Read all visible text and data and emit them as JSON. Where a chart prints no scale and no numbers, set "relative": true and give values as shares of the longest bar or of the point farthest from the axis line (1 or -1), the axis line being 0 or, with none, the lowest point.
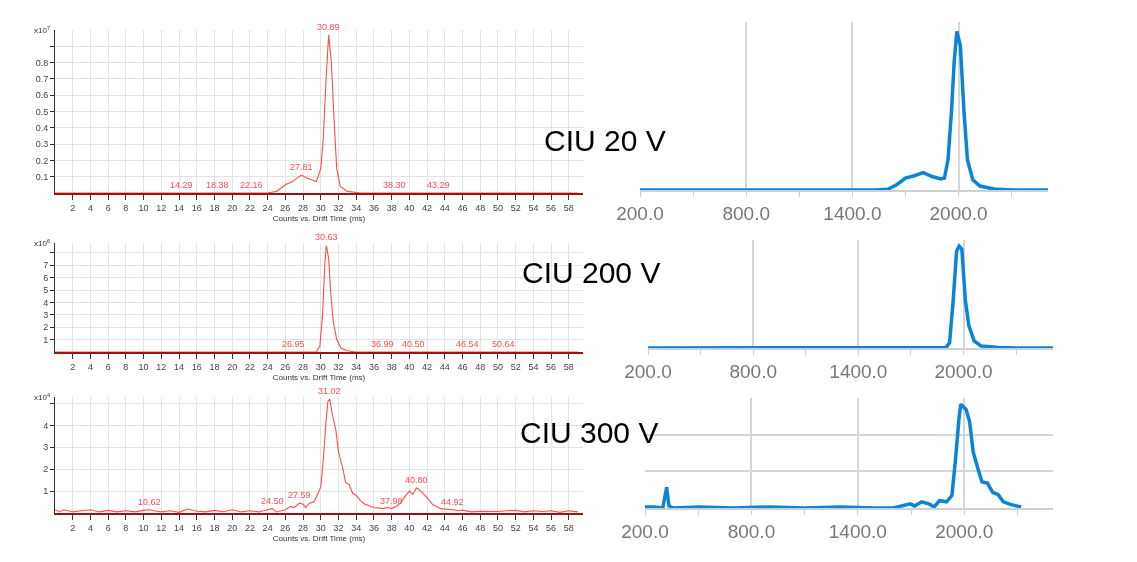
{
  "chart_data": [
    {
      "type": "line",
      "xlabel": "Counts vs. Drift Time (ms)",
      "ylabel": "x10$^{7}$",
      "xlim": [
        0,
        59.6
      ],
      "ylim": [
        0,
        1.0
      ],
      "xticks": [
        2,
        4,
        6,
        8,
        10,
        12,
        14,
        16,
        18,
        20,
        22,
        24,
        26,
        28,
        30,
        32,
        34,
        36,
        38,
        40,
        42,
        44,
        46,
        48,
        50,
        52,
        54,
        56,
        58
      ],
      "yticks": [
        0.1,
        0.2,
        0.3,
        0.4,
        0.5,
        0.6,
        0.7,
        0.8,
        {
          "value": 0.9,
          "label": null
        }
      ],
      "grid": true,
      "series": [
        {
          "color": "#ff4d4d",
          "x": [
            0,
            24,
            25,
            26,
            26.8,
            27.81,
            28.5,
            29.5,
            30.0,
            30.3,
            30.6,
            30.89,
            31.2,
            31.5,
            31.8,
            32.2,
            33,
            34.5,
            59
          ],
          "values": [
            0,
            0,
            0.01,
            0.05,
            0.07,
            0.11,
            0.09,
            0.07,
            0.15,
            0.35,
            0.7,
            0.97,
            0.8,
            0.45,
            0.15,
            0.04,
            0.01,
            0,
            0
          ]
        }
      ],
      "annotations": [
        {
          "text": "14.29",
          "x": 14.29,
          "y": 0
        },
        {
          "text": "18.38",
          "x": 18.38,
          "y": 0
        },
        {
          "text": "22.16",
          "x": 22.16,
          "y": 0
        },
        {
          "text": "27.81",
          "x": 27.81,
          "y": 0.11
        },
        {
          "text": "30.89",
          "x": 30.89,
          "y": 0.97
        },
        {
          "text": "38.30",
          "x": 38.3,
          "y": 0
        },
        {
          "text": "43.29",
          "x": 43.29,
          "y": 0
        }
      ]
    },
    {
      "type": "line",
      "xlabel": "Counts vs. Drift Time (ms)",
      "ylabel": "x10$^{6}$",
      "xlim": [
        0,
        59.6
      ],
      "ylim": [
        0,
        8.8
      ],
      "xticks": [
        2,
        4,
        6,
        8,
        10,
        12,
        14,
        16,
        18,
        20,
        22,
        24,
        26,
        28,
        30,
        32,
        34,
        36,
        38,
        40,
        42,
        44,
        46,
        48,
        50,
        52,
        54,
        56,
        58
      ],
      "yticks": [
        1,
        2,
        3,
        4,
        5,
        6,
        7,
        {
          "value": 8,
          "label": null
        }
      ],
      "grid": true,
      "series": [
        {
          "color": "#ff4d4d",
          "x": [
            0,
            28,
            29.5,
            29.9,
            30.2,
            30.45,
            30.63,
            30.9,
            31.1,
            31.4,
            31.8,
            32.3,
            33,
            34,
            35,
            59
          ],
          "values": [
            0,
            0,
            0,
            0.5,
            3,
            7,
            8.6,
            7.5,
            5,
            2.5,
            1,
            0.3,
            0.1,
            0,
            0,
            0
          ]
        }
      ],
      "annotations": [
        {
          "text": "26.95",
          "x": 26.95,
          "y": 0
        },
        {
          "text": "30.63",
          "x": 30.63,
          "y": 8.6
        },
        {
          "text": "36.99",
          "x": 36.99,
          "y": 0
        },
        {
          "text": "40.50",
          "x": 40.5,
          "y": 0
        },
        {
          "text": "46.54",
          "x": 46.54,
          "y": 0
        },
        {
          "text": "50.64",
          "x": 50.64,
          "y": 0
        }
      ]
    },
    {
      "type": "line",
      "xlabel": "Counts vs. Drift Time (ms)",
      "ylabel": "x10$^{4}$",
      "xlim": [
        0,
        59.6
      ],
      "ylim": [
        0,
        5.3
      ],
      "xticks": [
        2,
        4,
        6,
        8,
        10,
        12,
        14,
        16,
        18,
        20,
        22,
        24,
        26,
        28,
        30,
        32,
        34,
        36,
        38,
        40,
        42,
        44,
        46,
        48,
        50,
        52,
        54,
        56,
        58
      ],
      "yticks": [
        1,
        2,
        3,
        4,
        {
          "value": 5,
          "label": null
        }
      ],
      "grid": true,
      "series": [
        {
          "color": "#ff4d4d",
          "x": [
            0,
            0.5,
            1,
            2,
            3,
            4,
            5,
            6,
            7,
            8,
            9,
            10,
            10.62,
            11.5,
            12,
            13,
            14,
            15,
            16,
            17,
            18,
            19,
            20,
            21,
            22,
            23,
            24,
            24.5,
            25,
            26,
            26.6,
            27,
            27.59,
            28,
            28.3,
            28.7,
            29.2,
            29.6,
            30,
            30.3,
            30.6,
            30.8,
            31.02,
            31.3,
            31.7,
            32,
            32.5,
            32.8,
            33.2,
            33.6,
            34,
            34.5,
            35,
            36,
            37,
            37.5,
            37.98,
            38.5,
            39,
            39.5,
            40,
            40.4,
            40.8,
            41.3,
            42,
            42.6,
            43.5,
            44.92,
            45.5,
            46,
            47,
            48,
            50,
            51,
            52,
            53,
            54,
            55,
            56,
            57,
            58,
            59
          ],
          "values": [
            0.15,
            0.05,
            0.15,
            0.05,
            0.1,
            0.15,
            0.05,
            0.12,
            0.05,
            0.1,
            0.05,
            0.12,
            0.15,
            0.08,
            0.05,
            0.1,
            0.03,
            0.18,
            0.08,
            0.05,
            0.12,
            0.06,
            0.15,
            0.05,
            0.1,
            0.05,
            0.15,
            0.2,
            0.05,
            0.15,
            0.3,
            0.25,
            0.45,
            0.4,
            0.25,
            0.45,
            0.5,
            0.8,
            1.2,
            2.5,
            4.2,
            5.1,
            5.2,
            4.5,
            3.8,
            2.8,
            2.0,
            1.4,
            1.3,
            0.9,
            0.8,
            0.55,
            0.4,
            0.25,
            0.2,
            0.25,
            0.2,
            0.3,
            0.45,
            0.75,
            1.0,
            0.85,
            1.15,
            1.0,
            0.7,
            0.4,
            0.2,
            0.15,
            0.1,
            0.13,
            0.05,
            0.08,
            0.07,
            0.1,
            0.12,
            0.05,
            0.1,
            0.07,
            0.1,
            0.03,
            0.1,
            0.05
          ]
        }
      ],
      "annotations": [
        {
          "text": "10.62",
          "x": 10.62,
          "y": 0.15
        },
        {
          "text": "24.50",
          "x": 24.5,
          "y": 0.2
        },
        {
          "text": "27.59",
          "x": 27.59,
          "y": 0.45
        },
        {
          "text": "31.02",
          "x": 31.02,
          "y": 5.2
        },
        {
          "text": "37.98",
          "x": 37.98,
          "y": 0.2
        },
        {
          "text": "40.80",
          "x": 40.8,
          "y": 1.15
        },
        {
          "text": "44.92",
          "x": 44.92,
          "y": 0.15
        }
      ]
    },
    {
      "type": "line",
      "title": "CIU 20 V",
      "relative": true,
      "xlim": [
        200,
        2505
      ],
      "xticks": [
        {
          "value": 200,
          "label": "200.0"
        },
        {
          "value": 500,
          "label": null
        },
        {
          "value": 800,
          "label": "800.0"
        },
        {
          "value": 1100,
          "label": null
        },
        {
          "value": 1400,
          "label": "1400.0"
        },
        {
          "value": 1700,
          "label": null
        },
        {
          "value": 2000,
          "label": "2000.0"
        },
        {
          "value": 2300,
          "label": null
        }
      ],
      "grid": "x",
      "tick_labels": "x",
      "series": [
        {
          "color": "#0a84d6",
          "x": [
            200,
            1530,
            1600,
            1650,
            1700,
            1750,
            1800,
            1850,
            1900,
            1920,
            1940,
            1960,
            1975,
            1990,
            2010,
            2030,
            2050,
            2080,
            2120,
            2200,
            2300,
            2505
          ],
          "values": [
            0,
            0,
            0.005,
            0.033,
            0.075,
            0.09,
            0.11,
            0.085,
            0.07,
            0.075,
            0.19,
            0.5,
            0.81,
            1.0,
            0.91,
            0.5,
            0.19,
            0.065,
            0.025,
            0.006,
            0,
            0
          ]
        }
      ]
    },
    {
      "type": "line",
      "title": "CIU 200 V",
      "relative": true,
      "xlim": [
        200,
        2510
      ],
      "xticks": [
        {
          "value": 200,
          "label": "200.0"
        },
        {
          "value": 500,
          "label": null
        },
        {
          "value": 800,
          "label": "800.0"
        },
        {
          "value": 1100,
          "label": null
        },
        {
          "value": 1400,
          "label": "1400.0"
        },
        {
          "value": 1700,
          "label": null
        },
        {
          "value": 2000,
          "label": "2000.0"
        },
        {
          "value": 2300,
          "label": null
        }
      ],
      "grid": "x",
      "tick_labels": "x",
      "series": [
        {
          "color": "#0a84d6",
          "x": [
            200,
            1900,
            1920,
            1940,
            1960,
            1975,
            1990,
            2010,
            2030,
            2060,
            2100,
            2200,
            2300,
            2510
          ],
          "values": [
            0,
            0.005,
            0.05,
            0.45,
            0.95,
            1,
            0.97,
            0.47,
            0.22,
            0.07,
            0.02,
            0.005,
            0,
            0
          ]
        }
      ]
    },
    {
      "type": "line",
      "title": "CIU 300 V",
      "relative": true,
      "xlim": [
        200,
        2500
      ],
      "xticks": [
        {
          "value": 200,
          "label": "200.0"
        },
        {
          "value": 500,
          "label": null
        },
        {
          "value": 800,
          "label": "800.0"
        },
        {
          "value": 1100,
          "label": null
        },
        {
          "value": 1400,
          "label": "1400.0"
        },
        {
          "value": 1700,
          "label": null
        },
        {
          "value": 2000,
          "label": "2000.0"
        },
        {
          "value": 2300,
          "label": null
        }
      ],
      "grid": true,
      "tick_labels": "x",
      "series": [
        {
          "color": "#0a84d6",
          "x": [
            200,
            250,
            300,
            322,
            335,
            360,
            500,
            700,
            900,
            1100,
            1300,
            1500,
            1600,
            1695,
            1720,
            1760,
            1800,
            1830,
            1860,
            1900,
            1930,
            1950,
            1970,
            1980,
            2010,
            2030,
            2050,
            2080,
            2100,
            2130,
            2160,
            2190,
            2220,
            2260,
            2320
          ],
          "values": [
            0.01,
            0.01,
            0,
            0.2,
            0.02,
            0,
            0.01,
            0,
            0.01,
            0,
            0.01,
            0,
            0,
            0.04,
            0.02,
            0.06,
            0.04,
            0.01,
            0.07,
            0.06,
            0.12,
            0.46,
            0.86,
            1.0,
            0.95,
            0.83,
            0.54,
            0.36,
            0.25,
            0.24,
            0.15,
            0.13,
            0.06,
            0.035,
            0.01
          ]
        }
      ]
    }
  ]
}
